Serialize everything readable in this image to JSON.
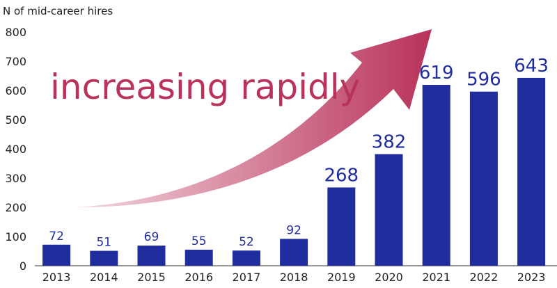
{
  "chart_data": {
    "type": "bar",
    "title": "",
    "ylabel": "N of mid-career hires",
    "xlabel": "",
    "categories": [
      "2013",
      "2014",
      "2015",
      "2016",
      "2017",
      "2018",
      "2019",
      "2020",
      "2021",
      "2022",
      "2023"
    ],
    "values": [
      72,
      51,
      69,
      55,
      52,
      92,
      268,
      382,
      619,
      596,
      643
    ],
    "ylim": [
      0,
      800
    ],
    "yticks": [
      0,
      100,
      200,
      300,
      400,
      500,
      600,
      700,
      800
    ],
    "grid": false,
    "annotation": "increasing rapidly",
    "colors": {
      "bar": "#1f2d9e",
      "label": "#1f2d9e",
      "arrow_start": "#f3d6de",
      "arrow_end": "#b8325a",
      "annotation": "#b8325a"
    }
  }
}
